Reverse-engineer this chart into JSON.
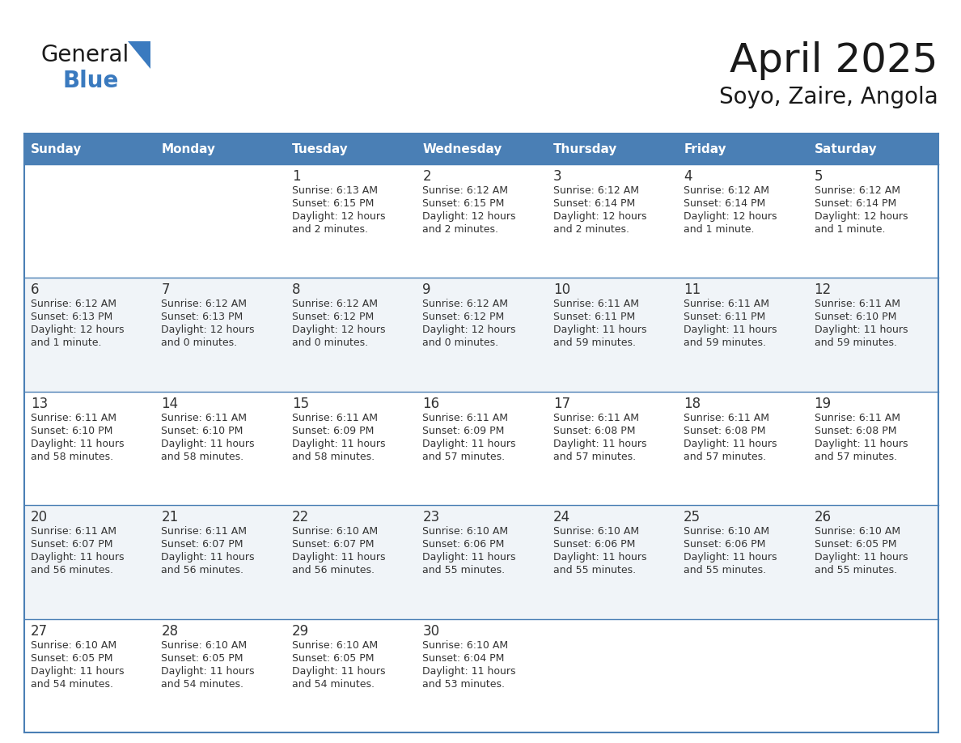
{
  "title": "April 2025",
  "subtitle": "Soyo, Zaire, Angola",
  "header_bg": "#4a7fb5",
  "header_text": "#ffffff",
  "row_bg_odd": "#ffffff",
  "row_bg_even": "#f0f4f8",
  "border_color": "#4a7fb5",
  "text_color": "#333333",
  "days_of_week": [
    "Sunday",
    "Monday",
    "Tuesday",
    "Wednesday",
    "Thursday",
    "Friday",
    "Saturday"
  ],
  "calendar_data": [
    [
      {
        "day": "",
        "sunrise": "",
        "sunset": "",
        "daylight": ""
      },
      {
        "day": "",
        "sunrise": "",
        "sunset": "",
        "daylight": ""
      },
      {
        "day": "1",
        "sunrise": "Sunrise: 6:13 AM",
        "sunset": "Sunset: 6:15 PM",
        "daylight": "Daylight: 12 hours\nand 2 minutes."
      },
      {
        "day": "2",
        "sunrise": "Sunrise: 6:12 AM",
        "sunset": "Sunset: 6:15 PM",
        "daylight": "Daylight: 12 hours\nand 2 minutes."
      },
      {
        "day": "3",
        "sunrise": "Sunrise: 6:12 AM",
        "sunset": "Sunset: 6:14 PM",
        "daylight": "Daylight: 12 hours\nand 2 minutes."
      },
      {
        "day": "4",
        "sunrise": "Sunrise: 6:12 AM",
        "sunset": "Sunset: 6:14 PM",
        "daylight": "Daylight: 12 hours\nand 1 minute."
      },
      {
        "day": "5",
        "sunrise": "Sunrise: 6:12 AM",
        "sunset": "Sunset: 6:14 PM",
        "daylight": "Daylight: 12 hours\nand 1 minute."
      }
    ],
    [
      {
        "day": "6",
        "sunrise": "Sunrise: 6:12 AM",
        "sunset": "Sunset: 6:13 PM",
        "daylight": "Daylight: 12 hours\nand 1 minute."
      },
      {
        "day": "7",
        "sunrise": "Sunrise: 6:12 AM",
        "sunset": "Sunset: 6:13 PM",
        "daylight": "Daylight: 12 hours\nand 0 minutes."
      },
      {
        "day": "8",
        "sunrise": "Sunrise: 6:12 AM",
        "sunset": "Sunset: 6:12 PM",
        "daylight": "Daylight: 12 hours\nand 0 minutes."
      },
      {
        "day": "9",
        "sunrise": "Sunrise: 6:12 AM",
        "sunset": "Sunset: 6:12 PM",
        "daylight": "Daylight: 12 hours\nand 0 minutes."
      },
      {
        "day": "10",
        "sunrise": "Sunrise: 6:11 AM",
        "sunset": "Sunset: 6:11 PM",
        "daylight": "Daylight: 11 hours\nand 59 minutes."
      },
      {
        "day": "11",
        "sunrise": "Sunrise: 6:11 AM",
        "sunset": "Sunset: 6:11 PM",
        "daylight": "Daylight: 11 hours\nand 59 minutes."
      },
      {
        "day": "12",
        "sunrise": "Sunrise: 6:11 AM",
        "sunset": "Sunset: 6:10 PM",
        "daylight": "Daylight: 11 hours\nand 59 minutes."
      }
    ],
    [
      {
        "day": "13",
        "sunrise": "Sunrise: 6:11 AM",
        "sunset": "Sunset: 6:10 PM",
        "daylight": "Daylight: 11 hours\nand 58 minutes."
      },
      {
        "day": "14",
        "sunrise": "Sunrise: 6:11 AM",
        "sunset": "Sunset: 6:10 PM",
        "daylight": "Daylight: 11 hours\nand 58 minutes."
      },
      {
        "day": "15",
        "sunrise": "Sunrise: 6:11 AM",
        "sunset": "Sunset: 6:09 PM",
        "daylight": "Daylight: 11 hours\nand 58 minutes."
      },
      {
        "day": "16",
        "sunrise": "Sunrise: 6:11 AM",
        "sunset": "Sunset: 6:09 PM",
        "daylight": "Daylight: 11 hours\nand 57 minutes."
      },
      {
        "day": "17",
        "sunrise": "Sunrise: 6:11 AM",
        "sunset": "Sunset: 6:08 PM",
        "daylight": "Daylight: 11 hours\nand 57 minutes."
      },
      {
        "day": "18",
        "sunrise": "Sunrise: 6:11 AM",
        "sunset": "Sunset: 6:08 PM",
        "daylight": "Daylight: 11 hours\nand 57 minutes."
      },
      {
        "day": "19",
        "sunrise": "Sunrise: 6:11 AM",
        "sunset": "Sunset: 6:08 PM",
        "daylight": "Daylight: 11 hours\nand 57 minutes."
      }
    ],
    [
      {
        "day": "20",
        "sunrise": "Sunrise: 6:11 AM",
        "sunset": "Sunset: 6:07 PM",
        "daylight": "Daylight: 11 hours\nand 56 minutes."
      },
      {
        "day": "21",
        "sunrise": "Sunrise: 6:11 AM",
        "sunset": "Sunset: 6:07 PM",
        "daylight": "Daylight: 11 hours\nand 56 minutes."
      },
      {
        "day": "22",
        "sunrise": "Sunrise: 6:10 AM",
        "sunset": "Sunset: 6:07 PM",
        "daylight": "Daylight: 11 hours\nand 56 minutes."
      },
      {
        "day": "23",
        "sunrise": "Sunrise: 6:10 AM",
        "sunset": "Sunset: 6:06 PM",
        "daylight": "Daylight: 11 hours\nand 55 minutes."
      },
      {
        "day": "24",
        "sunrise": "Sunrise: 6:10 AM",
        "sunset": "Sunset: 6:06 PM",
        "daylight": "Daylight: 11 hours\nand 55 minutes."
      },
      {
        "day": "25",
        "sunrise": "Sunrise: 6:10 AM",
        "sunset": "Sunset: 6:06 PM",
        "daylight": "Daylight: 11 hours\nand 55 minutes."
      },
      {
        "day": "26",
        "sunrise": "Sunrise: 6:10 AM",
        "sunset": "Sunset: 6:05 PM",
        "daylight": "Daylight: 11 hours\nand 55 minutes."
      }
    ],
    [
      {
        "day": "27",
        "sunrise": "Sunrise: 6:10 AM",
        "sunset": "Sunset: 6:05 PM",
        "daylight": "Daylight: 11 hours\nand 54 minutes."
      },
      {
        "day": "28",
        "sunrise": "Sunrise: 6:10 AM",
        "sunset": "Sunset: 6:05 PM",
        "daylight": "Daylight: 11 hours\nand 54 minutes."
      },
      {
        "day": "29",
        "sunrise": "Sunrise: 6:10 AM",
        "sunset": "Sunset: 6:05 PM",
        "daylight": "Daylight: 11 hours\nand 54 minutes."
      },
      {
        "day": "30",
        "sunrise": "Sunrise: 6:10 AM",
        "sunset": "Sunset: 6:04 PM",
        "daylight": "Daylight: 11 hours\nand 53 minutes."
      },
      {
        "day": "",
        "sunrise": "",
        "sunset": "",
        "daylight": ""
      },
      {
        "day": "",
        "sunrise": "",
        "sunset": "",
        "daylight": ""
      },
      {
        "day": "",
        "sunrise": "",
        "sunset": "",
        "daylight": ""
      }
    ]
  ],
  "logo_color_general": "#1a1a1a",
  "logo_color_blue": "#3a7abf",
  "logo_triangle_color": "#3a7abf",
  "title_fontsize": 36,
  "subtitle_fontsize": 20,
  "day_header_fontsize": 11,
  "day_num_fontsize": 12,
  "cell_text_fontsize": 9
}
